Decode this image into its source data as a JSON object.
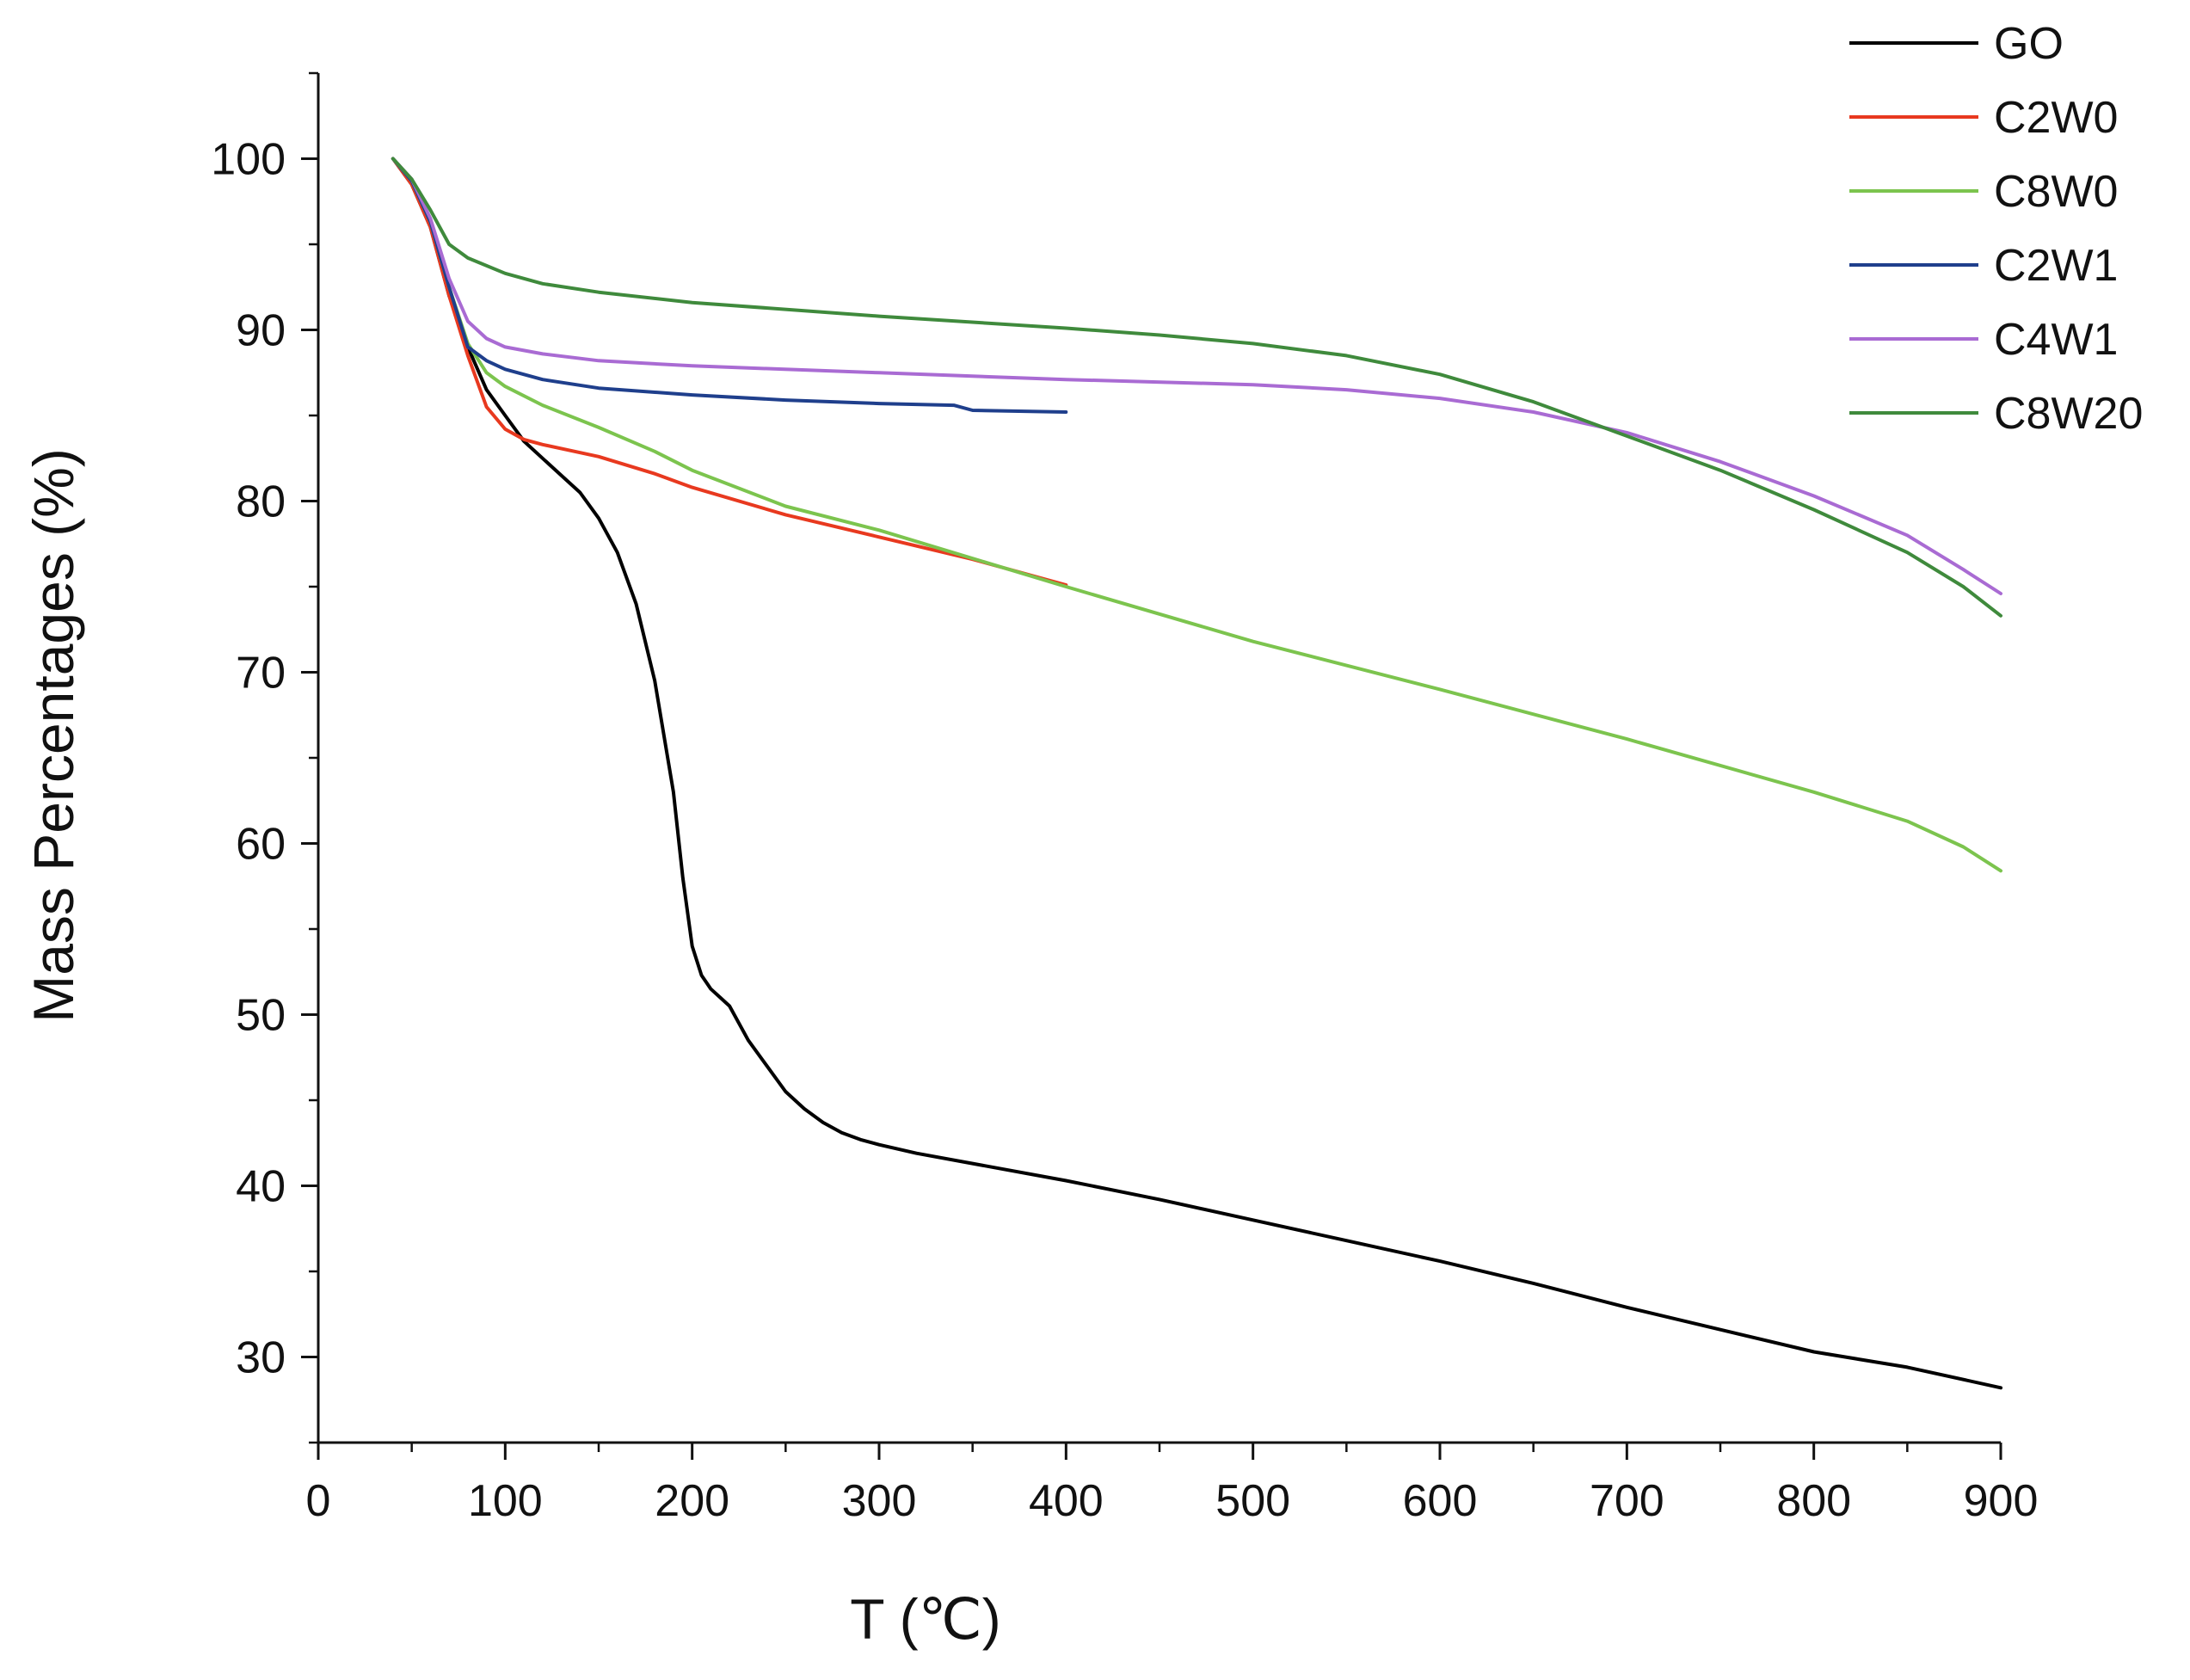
{
  "chart_data": {
    "type": "line",
    "title": "",
    "xlabel": "T (℃)",
    "ylabel": "Mass Percentages (%)",
    "xlim": [
      0,
      900
    ],
    "ylim": [
      25,
      105
    ],
    "xticks": [
      0,
      100,
      200,
      300,
      400,
      500,
      600,
      700,
      800,
      900
    ],
    "yticks": [
      30,
      40,
      50,
      60,
      70,
      80,
      90,
      100
    ],
    "grid": false,
    "legend_position": "top-right",
    "series": [
      {
        "name": "GO",
        "color": "#000000",
        "x": [
          40,
          50,
          60,
          70,
          80,
          90,
          100,
          110,
          120,
          130,
          140,
          150,
          160,
          170,
          180,
          190,
          195,
          200,
          205,
          210,
          215,
          220,
          230,
          240,
          250,
          260,
          270,
          280,
          290,
          300,
          320,
          350,
          400,
          450,
          500,
          550,
          600,
          650,
          700,
          750,
          800,
          850,
          900
        ],
        "values": [
          100,
          98.5,
          96,
          92,
          89,
          86.5,
          85,
          83.5,
          82.5,
          81.5,
          80.5,
          79,
          77,
          74,
          69.5,
          63,
          58,
          54,
          52.3,
          51.5,
          51,
          50.5,
          48.5,
          47,
          45.5,
          44.5,
          43.7,
          43.1,
          42.7,
          42.4,
          41.9,
          41.3,
          40.3,
          39.2,
          38,
          36.8,
          35.6,
          34.3,
          32.9,
          31.6,
          30.3,
          29.4,
          28.2
        ]
      },
      {
        "name": "C2W0",
        "color": "#e8391f",
        "x": [
          40,
          50,
          60,
          70,
          80,
          90,
          100,
          110,
          120,
          150,
          180,
          200,
          250,
          300,
          350,
          400
        ],
        "values": [
          100,
          98.5,
          96,
          92,
          88.5,
          85.5,
          84.2,
          83.6,
          83.3,
          82.6,
          81.6,
          80.8,
          79.2,
          77.9,
          76.6,
          75.1
        ]
      },
      {
        "name": "C8W0",
        "color": "#7cc44e",
        "x": [
          40,
          50,
          60,
          70,
          80,
          90,
          100,
          120,
          150,
          180,
          200,
          250,
          300,
          400,
          500,
          600,
          700,
          800,
          850,
          880,
          900
        ],
        "values": [
          100,
          98.7,
          96.3,
          92.5,
          89.2,
          87.5,
          86.7,
          85.6,
          84.3,
          82.9,
          81.8,
          79.7,
          78.3,
          75,
          71.8,
          69,
          66.1,
          63,
          61.3,
          59.8,
          58.4
        ]
      },
      {
        "name": "C2W1",
        "color": "#1f3f8c",
        "x": [
          40,
          50,
          60,
          70,
          80,
          90,
          100,
          120,
          150,
          200,
          250,
          300,
          340,
          350,
          400
        ],
        "values": [
          100,
          98.7,
          96.3,
          92.5,
          89,
          88.2,
          87.7,
          87.1,
          86.6,
          86.2,
          85.9,
          85.7,
          85.6,
          85.3,
          85.2
        ]
      },
      {
        "name": "C4W1",
        "color": "#a96bd3",
        "x": [
          40,
          50,
          60,
          70,
          80,
          90,
          100,
          120,
          150,
          200,
          300,
          400,
          500,
          550,
          600,
          650,
          700,
          750,
          800,
          850,
          880,
          900
        ],
        "values": [
          100,
          98.8,
          96.5,
          93,
          90.5,
          89.5,
          89,
          88.6,
          88.2,
          87.9,
          87.5,
          87.1,
          86.8,
          86.5,
          86,
          85.2,
          84,
          82.3,
          80.3,
          78,
          76,
          74.6
        ]
      },
      {
        "name": "C8W20",
        "color": "#3f8a3c",
        "x": [
          40,
          50,
          60,
          70,
          80,
          100,
          120,
          150,
          200,
          300,
          400,
          450,
          500,
          550,
          600,
          650,
          700,
          750,
          800,
          850,
          880,
          900
        ],
        "values": [
          100,
          98.8,
          97,
          95,
          94.2,
          93.3,
          92.7,
          92.2,
          91.6,
          90.8,
          90.1,
          89.7,
          89.2,
          88.5,
          87.4,
          85.8,
          83.8,
          81.8,
          79.5,
          77,
          75,
          73.3
        ]
      }
    ]
  }
}
